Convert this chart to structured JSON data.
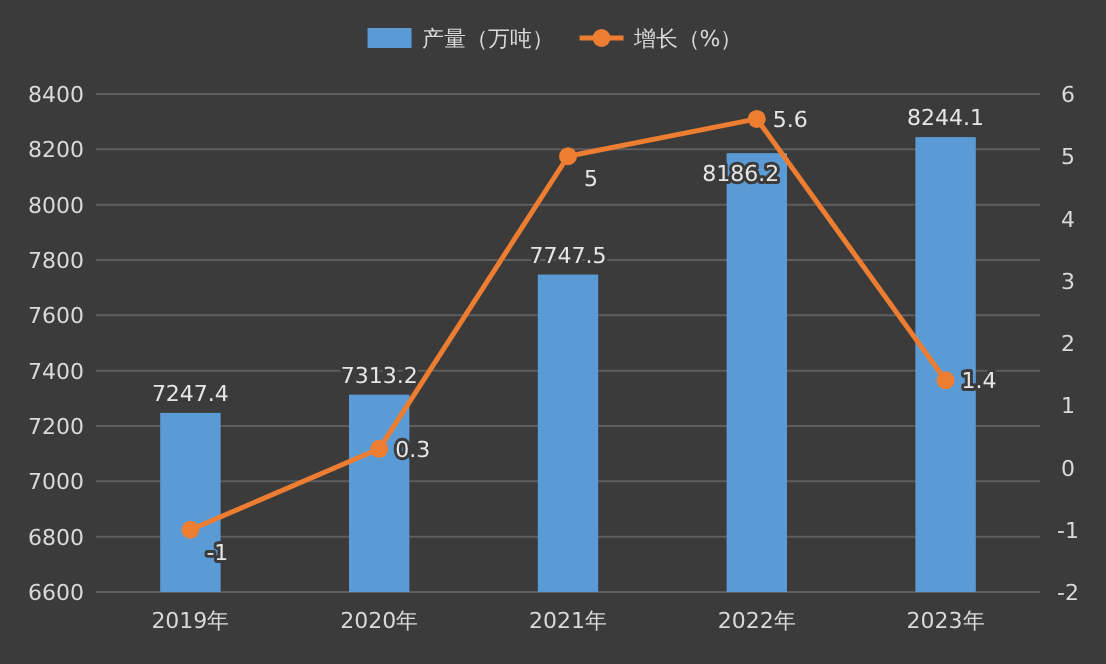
{
  "chart_data": {
    "type": "bar",
    "categories": [
      "2019年",
      "2020年",
      "2021年",
      "2022年",
      "2023年"
    ],
    "series": [
      {
        "name": "产量（万吨）",
        "color": "#5b9bd5",
        "values": [
          7247.4,
          7313.2,
          7747.5,
          8186.2,
          8244.1
        ]
      },
      {
        "name": "增长（%）",
        "type": "line",
        "axis": "y2",
        "color": "#ed7d31",
        "marker": "circle",
        "values": [
          -1,
          0.3,
          5,
          5.6,
          1.4
        ]
      }
    ],
    "ylim": [
      6600,
      8400
    ],
    "yticks": [
      6600,
      6800,
      7000,
      7200,
      7400,
      7600,
      7800,
      8000,
      8200,
      8400
    ],
    "y2lim": [
      -2,
      6
    ],
    "y2ticks": [
      -2,
      -1,
      0,
      1,
      2,
      3,
      4,
      5,
      6
    ],
    "grid": "y",
    "legend": "top",
    "data_labels": true
  }
}
